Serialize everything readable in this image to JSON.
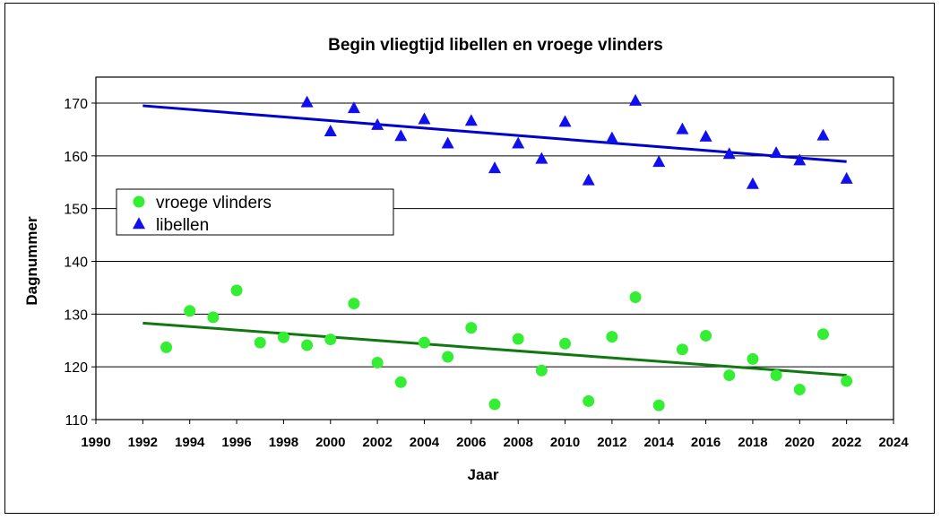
{
  "chart_data": {
    "type": "scatter",
    "title": "Begin vliegtijd libellen en vroege vlinders",
    "xlabel": "Jaar",
    "ylabel": "Dagnummer",
    "xlim": [
      1990,
      2024
    ],
    "ylim": [
      110,
      175
    ],
    "xticks": [
      1990,
      1992,
      1994,
      1996,
      1998,
      2000,
      2002,
      2004,
      2006,
      2008,
      2010,
      2012,
      2014,
      2016,
      2018,
      2020,
      2022,
      2024
    ],
    "yticks": [
      110,
      120,
      130,
      140,
      150,
      160,
      170
    ],
    "grid": "horizontal",
    "legend_position": "left",
    "series": [
      {
        "name": "vroege vlinders",
        "marker": "circle",
        "color": "#33ee33",
        "x": [
          1993,
          1994,
          1995,
          1996,
          1997,
          1998,
          1999,
          2000,
          2001,
          2002,
          2003,
          2004,
          2005,
          2006,
          2007,
          2008,
          2009,
          2010,
          2011,
          2012,
          2013,
          2014,
          2015,
          2016,
          2017,
          2018,
          2019,
          2020,
          2021,
          2022
        ],
        "values": [
          123.7,
          130.6,
          129.4,
          134.5,
          124.6,
          125.6,
          124.1,
          125.2,
          132.0,
          120.8,
          117.1,
          124.6,
          121.9,
          127.4,
          112.9,
          125.3,
          119.3,
          124.4,
          113.5,
          125.7,
          133.2,
          112.7,
          123.3,
          125.9,
          118.4,
          121.5,
          118.4,
          115.7,
          126.2,
          117.3
        ],
        "trend": {
          "x": [
            1992,
            2022
          ],
          "y": [
            128.3,
            118.4
          ],
          "color": "#117711"
        }
      },
      {
        "name": "libellen",
        "marker": "triangle",
        "color": "#1010ee",
        "x": [
          1999,
          2000,
          2001,
          2002,
          2003,
          2004,
          2005,
          2006,
          2007,
          2008,
          2009,
          2010,
          2011,
          2012,
          2013,
          2014,
          2015,
          2016,
          2017,
          2018,
          2019,
          2020,
          2021,
          2022
        ],
        "values": [
          170.1,
          164.6,
          169.0,
          165.8,
          163.7,
          166.9,
          162.3,
          166.6,
          157.6,
          162.3,
          159.4,
          166.4,
          155.3,
          163.3,
          170.4,
          158.8,
          165.0,
          163.6,
          160.3,
          154.6,
          160.5,
          159.1,
          163.8,
          155.6
        ],
        "trend": {
          "x": [
            1992,
            2022
          ],
          "y": [
            169.5,
            158.9
          ],
          "color": "#0000cc"
        }
      }
    ]
  }
}
